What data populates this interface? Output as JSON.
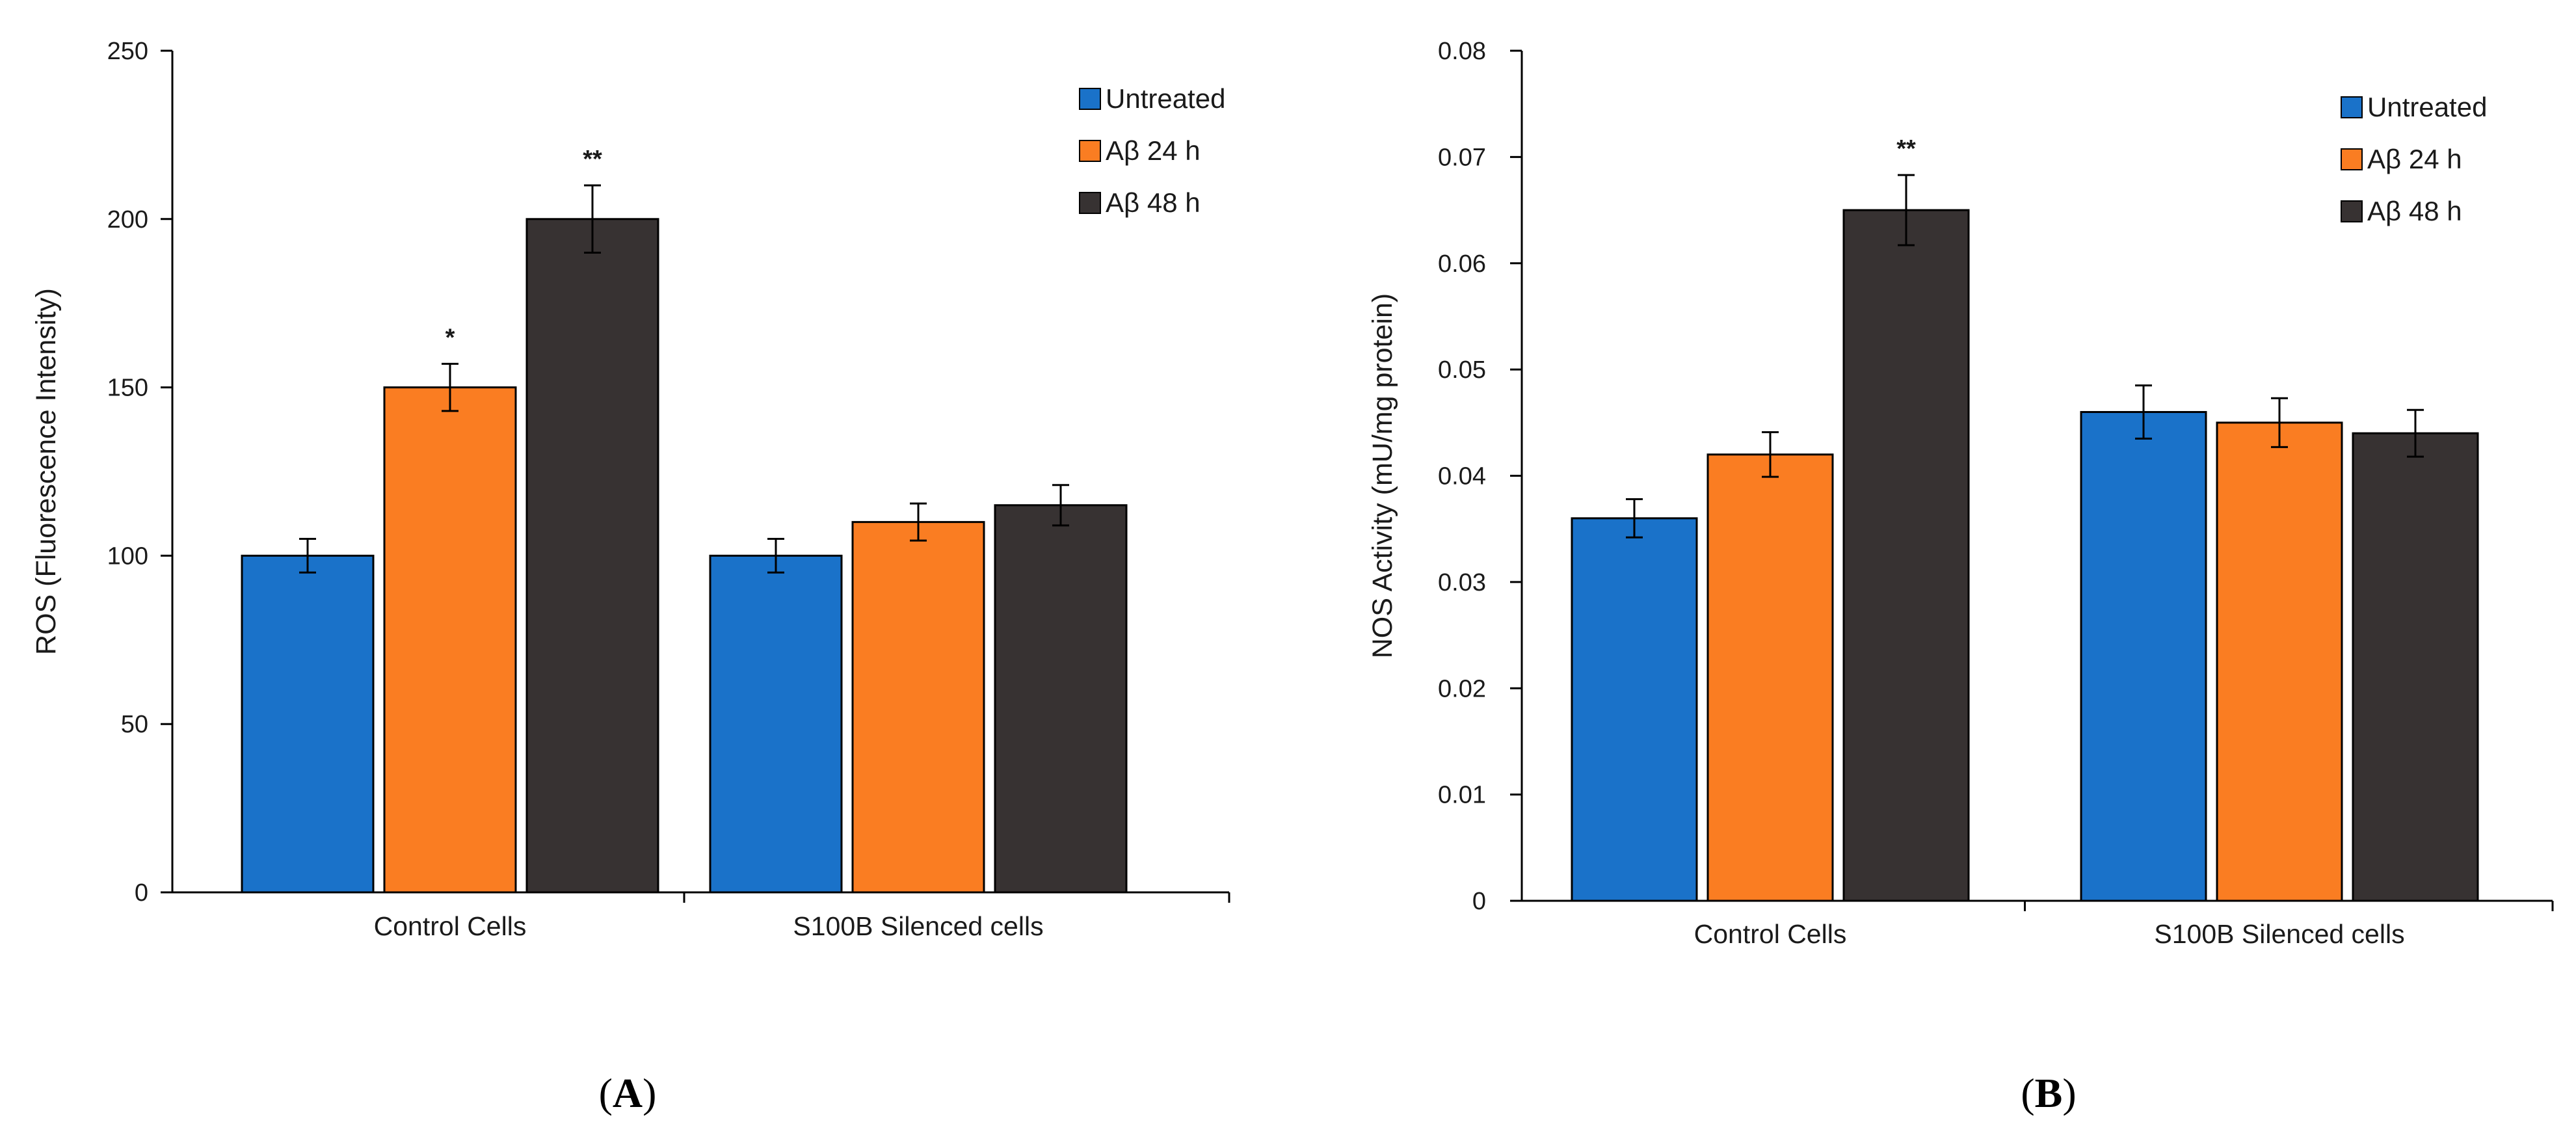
{
  "colors": {
    "series": [
      "#1a72c9",
      "#fa7d22",
      "#373232"
    ],
    "axis": "#000000"
  },
  "chart_data": [
    {
      "type": "bar",
      "panel_label": "A",
      "title": "",
      "xlabel": "",
      "ylabel": "ROS (Fluorescence Intensity)",
      "ylim": [
        0,
        250
      ],
      "yticks": [
        0,
        50,
        100,
        150,
        200,
        250
      ],
      "ytick_labels": [
        "0",
        "50",
        "100",
        "150",
        "200",
        "250"
      ],
      "categories": [
        "Control Cells",
        "S100B Silenced cells"
      ],
      "legend_position": "top-right",
      "series": [
        {
          "name": "Untreated",
          "values": [
            100,
            100
          ],
          "errors": [
            5,
            5
          ]
        },
        {
          "name": "Aβ 24 h",
          "values": [
            150,
            110
          ],
          "errors": [
            7,
            5.5
          ]
        },
        {
          "name": "Aβ 48 h",
          "values": [
            200,
            115
          ],
          "errors": [
            10,
            6
          ]
        }
      ],
      "annotations": [
        {
          "category": 0,
          "series": 1,
          "text": "*"
        },
        {
          "category": 0,
          "series": 2,
          "text": "**"
        }
      ]
    },
    {
      "type": "bar",
      "panel_label": "B",
      "title": "",
      "xlabel": "",
      "ylabel": "NOS Activity  (mU/mg protein)",
      "ylim": [
        0,
        0.08
      ],
      "yticks": [
        0,
        0.01,
        0.02,
        0.03,
        0.04,
        0.05,
        0.06,
        0.07,
        0.08
      ],
      "ytick_labels": [
        "0",
        "0.01",
        "0.02",
        "0.03",
        "0.04",
        "0.05",
        "0.06",
        "0.07",
        "0.08"
      ],
      "categories": [
        "Control Cells",
        "S100B Silenced cells"
      ],
      "legend_position": "top-right",
      "series": [
        {
          "name": "Untreated",
          "values": [
            0.036,
            0.046
          ],
          "errors": [
            0.0018,
            0.0025
          ]
        },
        {
          "name": "Aβ 24 h",
          "values": [
            0.042,
            0.045
          ],
          "errors": [
            0.0021,
            0.0023
          ]
        },
        {
          "name": "Aβ 48 h",
          "values": [
            0.065,
            0.044
          ],
          "errors": [
            0.0033,
            0.0022
          ]
        }
      ],
      "annotations": [
        {
          "category": 0,
          "series": 2,
          "text": "**"
        }
      ]
    }
  ]
}
